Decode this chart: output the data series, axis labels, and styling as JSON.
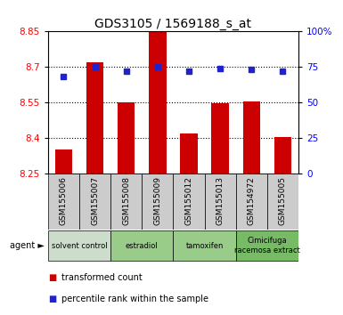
{
  "title": "GDS3105 / 1569188_s_at",
  "samples": [
    "GSM155006",
    "GSM155007",
    "GSM155008",
    "GSM155009",
    "GSM155012",
    "GSM155013",
    "GSM154972",
    "GSM155005"
  ],
  "bar_values": [
    8.35,
    8.72,
    8.55,
    8.85,
    8.42,
    8.545,
    8.555,
    8.405
  ],
  "percentile_values": [
    68,
    75,
    72,
    75,
    72,
    74,
    73,
    72
  ],
  "ymin": 8.25,
  "ymax": 8.85,
  "y2min": 0,
  "y2max": 100,
  "yticks": [
    8.25,
    8.4,
    8.55,
    8.7,
    8.85
  ],
  "y2ticks": [
    0,
    25,
    50,
    75,
    100
  ],
  "bar_color": "#cc0000",
  "dot_color": "#2222cc",
  "bar_width": 0.55,
  "group_spans": [
    {
      "start": 0,
      "end": 1,
      "label": "solvent control",
      "color": "#ccddcc"
    },
    {
      "start": 2,
      "end": 3,
      "label": "estradiol",
      "color": "#99cc88"
    },
    {
      "start": 4,
      "end": 5,
      "label": "tamoxifen",
      "color": "#99cc88"
    },
    {
      "start": 6,
      "end": 7,
      "label": "Cimicifuga\nracemosa extract",
      "color": "#77bb66"
    }
  ],
  "agent_label": "agent",
  "legend_bar": "transformed count",
  "legend_dot": "percentile rank within the sample",
  "sample_bg": "#cccccc",
  "plot_bg": "#ffffff",
  "title_fontsize": 10
}
